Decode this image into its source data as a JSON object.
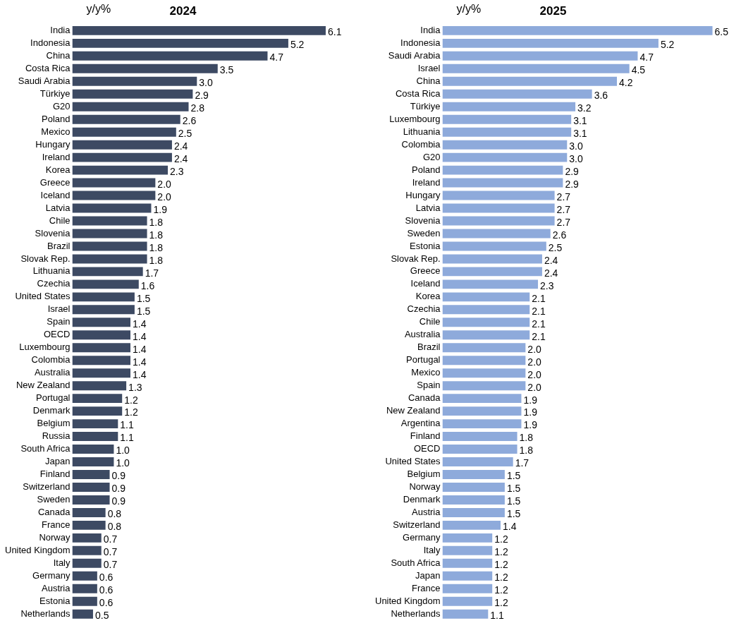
{
  "chart_data": [
    {
      "type": "bar",
      "orientation": "horizontal",
      "title": "2024",
      "annotations": [
        "y/y%"
      ],
      "tick_labels": "y",
      "grid": false,
      "legend": false,
      "categories": [
        "India",
        "Indonesia",
        "China",
        "Costa Rica",
        "Saudi Arabia",
        "Türkiye",
        "G20",
        "Poland",
        "Mexico",
        "Hungary",
        "Ireland",
        "Korea",
        "Greece",
        "Iceland",
        "Latvia",
        "Chile",
        "Slovenia",
        "Brazil",
        "Slovak Rep.",
        "Lithuania",
        "Czechia",
        "United States",
        "Israel",
        "Spain",
        "OECD",
        "Luxembourg",
        "Colombia",
        "Australia",
        "New Zealand",
        "Portugal",
        "Denmark",
        "Belgium",
        "Russia",
        "South Africa",
        "Japan",
        "Finland",
        "Switzerland",
        "Sweden",
        "Canada",
        "France",
        "Norway",
        "United Kingdom",
        "Italy",
        "Germany",
        "Austria",
        "Estonia",
        "Netherlands"
      ],
      "series": [
        {
          "color": "#3d4a63",
          "values": [
            6.1,
            5.2,
            4.7,
            3.5,
            3.0,
            2.9,
            2.8,
            2.6,
            2.5,
            2.4,
            2.4,
            2.3,
            2.0,
            2.0,
            1.9,
            1.8,
            1.8,
            1.8,
            1.8,
            1.7,
            1.6,
            1.5,
            1.5,
            1.4,
            1.4,
            1.4,
            1.4,
            1.4,
            1.3,
            1.2,
            1.2,
            1.1,
            1.1,
            1.0,
            1.0,
            0.9,
            0.9,
            0.9,
            0.8,
            0.8,
            0.7,
            0.7,
            0.7,
            0.6,
            0.6,
            0.6,
            0.5
          ],
          "value_labels": [
            "6.1",
            "5.2",
            "4.7",
            "3.5",
            "3.0",
            "2.9",
            "2.8",
            "2.6",
            "2.5",
            "2.4",
            "2.4",
            "2.3",
            "2.0",
            "2.0",
            "1.9",
            "1.8",
            "1.8",
            "1.8",
            "1.8",
            "1.7",
            "1.6",
            "1.5",
            "1.5",
            "1.4",
            "1.4",
            "1.4",
            "1.4",
            "1.4",
            "1.3",
            "1.2",
            "1.2",
            "1.1",
            "1.1",
            "1.0",
            "1.0",
            "0.9",
            "0.9",
            "0.9",
            "0.8",
            "0.8",
            "0.7",
            "0.7",
            "0.7",
            "0.6",
            "0.6",
            "0.6",
            "0.5"
          ]
        }
      ]
    },
    {
      "type": "bar",
      "orientation": "horizontal",
      "title": "2025",
      "annotations": [
        "y/y%"
      ],
      "tick_labels": "y",
      "grid": false,
      "legend": false,
      "categories": [
        "India",
        "Indonesia",
        "Saudi Arabia",
        "Israel",
        "China",
        "Costa Rica",
        "Türkiye",
        "Luxembourg",
        "Lithuania",
        "Colombia",
        "G20",
        "Poland",
        "Ireland",
        "Hungary",
        "Latvia",
        "Slovenia",
        "Sweden",
        "Estonia",
        "Slovak Rep.",
        "Greece",
        "Iceland",
        "Korea",
        "Czechia",
        "Chile",
        "Australia",
        "Brazil",
        "Portugal",
        "Mexico",
        "Spain",
        "Canada",
        "New Zealand",
        "Argentina",
        "Finland",
        "OECD",
        "United States",
        "Belgium",
        "Norway",
        "Denmark",
        "Austria",
        "Switzerland",
        "Germany",
        "Italy",
        "South Africa",
        "Japan",
        "France",
        "United Kingdom",
        "Netherlands"
      ],
      "series": [
        {
          "color": "#8eaadb",
          "values": [
            6.5,
            5.2,
            4.7,
            4.5,
            4.2,
            3.6,
            3.2,
            3.1,
            3.1,
            3.0,
            3.0,
            2.9,
            2.9,
            2.7,
            2.7,
            2.7,
            2.6,
            2.5,
            2.4,
            2.4,
            2.3,
            2.1,
            2.1,
            2.1,
            2.1,
            2.0,
            2.0,
            2.0,
            2.0,
            1.9,
            1.9,
            1.9,
            1.8,
            1.8,
            1.7,
            1.5,
            1.5,
            1.5,
            1.5,
            1.4,
            1.2,
            1.2,
            1.2,
            1.2,
            1.2,
            1.2,
            1.1
          ],
          "value_labels": [
            "6.5",
            "5.2",
            "4.7",
            "4.5",
            "4.2",
            "3.6",
            "3.2",
            "3.1",
            "3.1",
            "3.0",
            "3.0",
            "2.9",
            "2.9",
            "2.7",
            "2.7",
            "2.7",
            "2.6",
            "2.5",
            "2.4",
            "2.4",
            "2.3",
            "2.1",
            "2.1",
            "2.1",
            "2.1",
            "2.0",
            "2.0",
            "2.0",
            "2.0",
            "1.9",
            "1.9",
            "1.9",
            "1.8",
            "1.8",
            "1.7",
            "1.5",
            "1.5",
            "1.5",
            "1.5",
            "1.4",
            "1.2",
            "1.2",
            "1.2",
            "1.2",
            "1.2",
            "1.2",
            "1.1"
          ]
        }
      ]
    }
  ]
}
